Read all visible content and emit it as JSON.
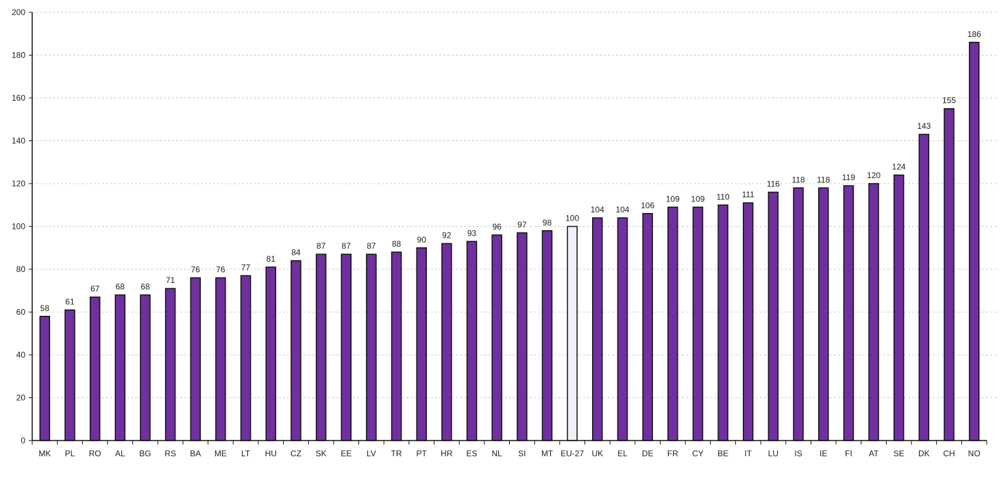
{
  "chart_data": {
    "type": "bar",
    "title": "",
    "xlabel": "",
    "ylabel": "",
    "ylim": [
      0,
      200
    ],
    "yticks": [
      0,
      20,
      40,
      60,
      80,
      100,
      120,
      140,
      160,
      180,
      200
    ],
    "grid": true,
    "categories": [
      "MK",
      "PL",
      "RO",
      "AL",
      "BG",
      "RS",
      "BA",
      "ME",
      "LT",
      "HU",
      "CZ",
      "SK",
      "EE",
      "LV",
      "TR",
      "PT",
      "HR",
      "ES",
      "NL",
      "SI",
      "MT",
      "EU-27",
      "UK",
      "EL",
      "DE",
      "FR",
      "CY",
      "BE",
      "IT",
      "LU",
      "IS",
      "IE",
      "FI",
      "AT",
      "SE",
      "DK",
      "CH",
      "NO"
    ],
    "values": [
      58,
      61,
      67,
      68,
      68,
      71,
      76,
      76,
      77,
      81,
      84,
      87,
      87,
      87,
      88,
      90,
      92,
      93,
      96,
      97,
      98,
      100,
      104,
      104,
      106,
      109,
      109,
      110,
      111,
      116,
      118,
      118,
      119,
      120,
      124,
      143,
      155,
      186
    ],
    "highlight_category": "EU-27",
    "colors": {
      "bar": "#7030A0",
      "highlight": "#F3EFF8",
      "outline": "#111111",
      "grid": "#BBBBBB"
    }
  }
}
